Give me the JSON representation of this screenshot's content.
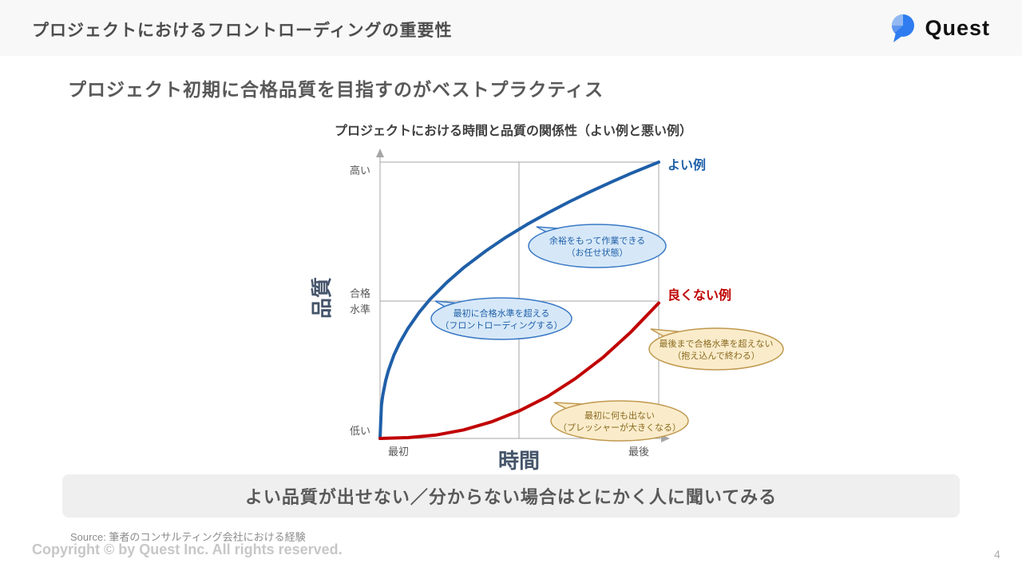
{
  "slide": {
    "title": "プロジェクトにおけるフロントローディングの重要性",
    "subtitle": "プロジェクト初期に合格品質を目指すのがベストプラクティス"
  },
  "logo": {
    "text": "Quest",
    "icon": "speech-bubble-icon",
    "brand_blue": "#2e7cf0",
    "brand_blue_light": "#93b9f2"
  },
  "banner": {
    "text": "よい品質が出せない／分からない場合はとにかく人に聞いてみる"
  },
  "footer": {
    "source": "Source: 筆者のコンサルティング会社における経験",
    "copyright": "Copyright © by Quest Inc. All rights reserved.",
    "page_number": "4"
  },
  "chart_data": {
    "type": "line",
    "title": "プロジェクトにおける時間と品質の関係性（よい例と悪い例）",
    "xlabel": "時間",
    "ylabel": "品質",
    "x_tick_labels": {
      "start": "最初",
      "end": "最後"
    },
    "y_tick_labels": {
      "high": "高い",
      "pass_line1": "合格",
      "pass_line2": "水準",
      "low": "低い"
    },
    "axis_norm": {
      "x_range": [
        0,
        1
      ],
      "y_range": [
        0,
        1
      ],
      "passing_level_y": 0.497,
      "mid_grid_x": 0.5
    },
    "grid": "quadrant lines at mid-x and passing level",
    "legend_position": "labels at line ends",
    "series": [
      {
        "name": "よい例",
        "color": "#1f5fa8",
        "x": [
          0,
          0.005,
          0.01,
          0.02,
          0.03,
          0.05,
          0.07,
          0.1,
          0.14,
          0.18,
          0.24,
          0.3,
          0.38,
          0.45,
          0.53,
          0.6,
          0.68,
          0.75,
          0.83,
          0.9,
          1.0
        ],
        "y": [
          0,
          0.12,
          0.158,
          0.209,
          0.246,
          0.302,
          0.345,
          0.398,
          0.456,
          0.504,
          0.565,
          0.618,
          0.679,
          0.727,
          0.776,
          0.815,
          0.857,
          0.891,
          0.928,
          0.959,
          1.0
        ]
      },
      {
        "name": "良くない例",
        "color": "#c00000",
        "x": [
          0,
          0.1,
          0.2,
          0.3,
          0.4,
          0.5,
          0.6,
          0.7,
          0.8,
          0.9,
          1.0
        ],
        "y": [
          0,
          0.003,
          0.012,
          0.031,
          0.06,
          0.1,
          0.151,
          0.216,
          0.293,
          0.385,
          0.49
        ]
      }
    ],
    "annotations": [
      {
        "style": "blue",
        "line1": "余裕をもって作業できる",
        "line2": "（お任せ状態）"
      },
      {
        "style": "blue",
        "line1": "最初に合格水準を超える",
        "line2": "（フロントローディングする）"
      },
      {
        "style": "orange",
        "line1": "最後まで合格水準を超えない",
        "line2": "（抱え込んで終わる）"
      },
      {
        "style": "orange",
        "line1": "最初に何も出ない",
        "line2": "（プレッシャーが大きくなる）"
      }
    ],
    "colors": {
      "good_line": "#1f5fa8",
      "bad_line": "#c00000",
      "axis": "#a6a6a6",
      "blue_bubble_fill": "#d6e8f8",
      "blue_bubble_stroke": "#3a79c5",
      "blue_bubble_text": "#1f5fa8",
      "orange_bubble_fill": "#faeccb",
      "orange_bubble_stroke": "#c0984e",
      "orange_bubble_text": "#8a6a1f"
    }
  }
}
